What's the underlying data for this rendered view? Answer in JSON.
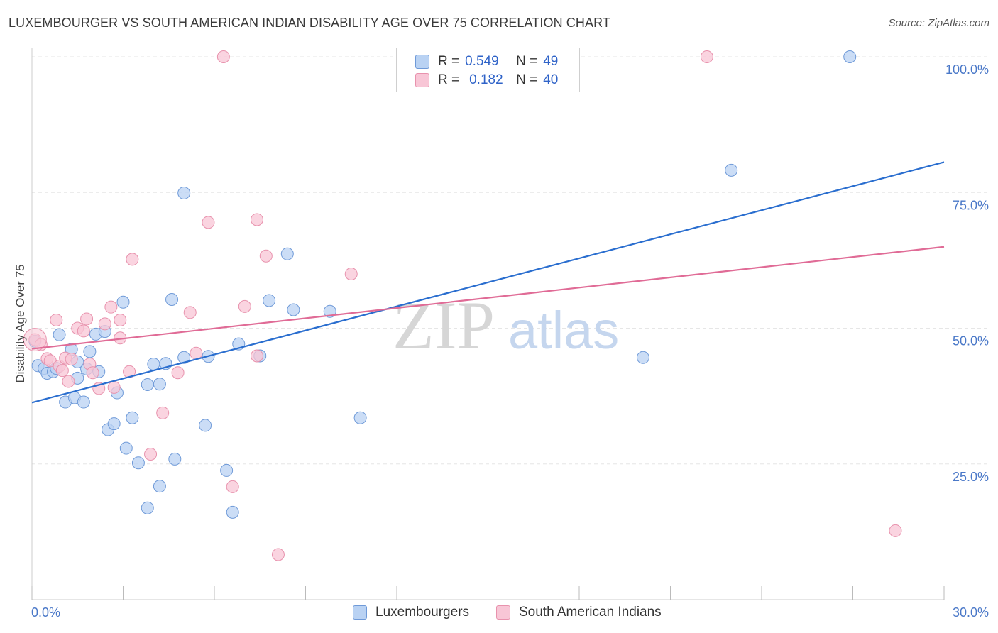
{
  "header": {
    "title": "LUXEMBOURGER VS SOUTH AMERICAN INDIAN DISABILITY AGE OVER 75 CORRELATION CHART",
    "source": "Source: ZipAtlas.com"
  },
  "legend": {
    "rows": [
      {
        "r_label": "R =",
        "r_value": "0.549",
        "n_label": "N =",
        "n_value": "49"
      },
      {
        "r_label": "R =",
        "r_value": "0.182",
        "n_label": "N =",
        "n_value": "40"
      }
    ]
  },
  "watermark": {
    "zip": "ZIP",
    "atlas": "atlas"
  },
  "colors": {
    "blue_fill": "#b9d2f3",
    "blue_stroke": "#6f9ad8",
    "blue_line": "#2a6ecf",
    "pink_fill": "#f8c6d6",
    "pink_stroke": "#e892ad",
    "pink_line": "#e06b96",
    "grid": "#e6e6e6",
    "tick_text": "#4a78c8"
  },
  "chart_data": {
    "type": "scatter",
    "title": "LUXEMBOURGER VS SOUTH AMERICAN INDIAN DISABILITY AGE OVER 75 CORRELATION CHART",
    "xlabel": "",
    "ylabel": "Disability Age Over 75",
    "xlim": [
      0,
      30
    ],
    "ylim": [
      0,
      100
    ],
    "x_ticks": [
      "0.0%",
      "30.0%"
    ],
    "y_ticks": [
      "25.0%",
      "50.0%",
      "75.0%",
      "100.0%"
    ],
    "y_tick_values": [
      25,
      50,
      75,
      100
    ],
    "grid": true,
    "legend_position": "top-center",
    "series": [
      {
        "name": "Luxembourgers",
        "r": 0.549,
        "n": 49,
        "trend": {
          "x": [
            0,
            30
          ],
          "y": [
            36.3,
            80.6
          ]
        },
        "points": [
          [
            0.1,
            47.6
          ],
          [
            0.2,
            43.1
          ],
          [
            0.4,
            42.6
          ],
          [
            0.5,
            41.7
          ],
          [
            0.7,
            42.0
          ],
          [
            0.8,
            42.6
          ],
          [
            0.9,
            48.8
          ],
          [
            1.1,
            36.4
          ],
          [
            1.3,
            46.1
          ],
          [
            1.4,
            37.2
          ],
          [
            1.5,
            40.8
          ],
          [
            1.7,
            36.4
          ],
          [
            1.8,
            42.5
          ],
          [
            1.9,
            45.7
          ],
          [
            2.1,
            48.9
          ],
          [
            2.2,
            42.0
          ],
          [
            2.4,
            49.4
          ],
          [
            2.5,
            31.3
          ],
          [
            2.7,
            32.4
          ],
          [
            2.8,
            38.1
          ],
          [
            3.0,
            54.8
          ],
          [
            3.1,
            27.9
          ],
          [
            3.3,
            33.5
          ],
          [
            3.5,
            25.2
          ],
          [
            3.8,
            39.6
          ],
          [
            3.8,
            16.9
          ],
          [
            4.0,
            43.4
          ],
          [
            4.2,
            20.9
          ],
          [
            4.2,
            39.7
          ],
          [
            4.4,
            43.5
          ],
          [
            4.6,
            55.3
          ],
          [
            4.7,
            25.9
          ],
          [
            5.0,
            74.9
          ],
          [
            5.0,
            44.6
          ],
          [
            5.7,
            32.1
          ],
          [
            5.8,
            44.8
          ],
          [
            6.4,
            23.8
          ],
          [
            6.6,
            16.1
          ],
          [
            6.8,
            47.1
          ],
          [
            7.5,
            44.9
          ],
          [
            7.8,
            55.1
          ],
          [
            8.4,
            63.7
          ],
          [
            8.6,
            53.4
          ],
          [
            9.8,
            53.1
          ],
          [
            10.8,
            33.5
          ],
          [
            20.1,
            44.6
          ],
          [
            23.0,
            79.1
          ],
          [
            26.9,
            100.0
          ],
          [
            1.5,
            43.8
          ]
        ]
      },
      {
        "name": "South American Indians",
        "r": 0.182,
        "n": 40,
        "trend": {
          "x": [
            0,
            30
          ],
          "y": [
            46.2,
            65.0
          ]
        },
        "points": [
          [
            0.1,
            47.9
          ],
          [
            0.3,
            47.0
          ],
          [
            0.5,
            44.4
          ],
          [
            0.6,
            44.0
          ],
          [
            0.8,
            51.5
          ],
          [
            0.9,
            43.0
          ],
          [
            1.0,
            42.2
          ],
          [
            1.1,
            44.5
          ],
          [
            1.2,
            40.2
          ],
          [
            1.3,
            44.3
          ],
          [
            1.5,
            50.0
          ],
          [
            1.7,
            49.5
          ],
          [
            1.8,
            51.7
          ],
          [
            1.9,
            43.4
          ],
          [
            2.0,
            41.8
          ],
          [
            2.2,
            38.9
          ],
          [
            2.4,
            50.8
          ],
          [
            2.6,
            53.9
          ],
          [
            2.7,
            39.1
          ],
          [
            2.9,
            48.2
          ],
          [
            2.9,
            51.5
          ],
          [
            3.2,
            42.0
          ],
          [
            3.3,
            62.7
          ],
          [
            3.9,
            26.8
          ],
          [
            4.3,
            34.4
          ],
          [
            4.8,
            41.8
          ],
          [
            5.2,
            52.9
          ],
          [
            5.4,
            45.4
          ],
          [
            5.8,
            69.5
          ],
          [
            6.3,
            100.0
          ],
          [
            6.6,
            20.8
          ],
          [
            7.0,
            54.0
          ],
          [
            7.4,
            70.0
          ],
          [
            7.4,
            44.9
          ],
          [
            7.7,
            63.3
          ],
          [
            8.1,
            8.3
          ],
          [
            10.5,
            60.0
          ],
          [
            13.8,
            100.0
          ],
          [
            22.2,
            100.0
          ],
          [
            28.4,
            12.7
          ]
        ]
      }
    ]
  },
  "bottom_legend": [
    {
      "label": "Luxembourgers"
    },
    {
      "label": "South American Indians"
    }
  ]
}
